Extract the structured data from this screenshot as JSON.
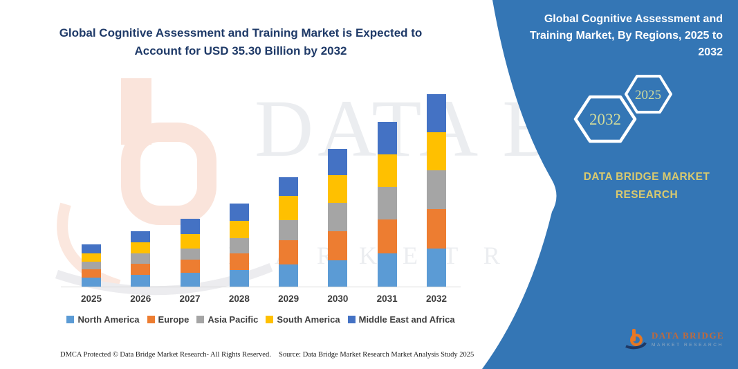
{
  "title": "Global Cognitive Assessment and Training Market is Expected to Account for USD 35.30 Billion by 2032",
  "side_panel": {
    "heading": "Global Cognitive Assessment and Training Market, By Regions, 2025 to 2032",
    "hexagon_back_year": "2032",
    "hexagon_front_year": "2025",
    "brand_line1": "DATA BRIDGE MARKET",
    "brand_line2": "RESEARCH",
    "background_color": "#3476B5",
    "accent_text_color": "#D9C96E",
    "hexagon_text_color": "#CFDA9C"
  },
  "watermarks": {
    "brand_large": "DATA BRIDGE",
    "brand_spaced": "M A R K E T   R E S E A R C H"
  },
  "logo": {
    "name": "DATA BRIDGE",
    "subtitle": "MARKET RESEARCH"
  },
  "footer": {
    "left": "DMCA Protected © Data Bridge Market Research-  All Rights Reserved.",
    "source": "Source: Data Bridge Market Research  Market Analysis Study 2025"
  },
  "chart_data": {
    "type": "bar",
    "stacked": true,
    "title": "Global Cognitive Assessment and Training Market, By Regions, 2025 to 2032",
    "unit": "USD Billion",
    "categories": [
      "2025",
      "2026",
      "2027",
      "2028",
      "2029",
      "2030",
      "2031",
      "2032"
    ],
    "series": [
      {
        "name": "North America",
        "color": "#5B9BD5",
        "values": [
          1.7,
          2.2,
          2.5,
          3.0,
          4.1,
          4.8,
          6.1,
          7.0
        ]
      },
      {
        "name": "Europe",
        "color": "#ED7D31",
        "values": [
          1.5,
          2.0,
          2.4,
          3.1,
          4.4,
          5.3,
          6.2,
          7.2
        ]
      },
      {
        "name": "Asia Pacific",
        "color": "#A5A5A5",
        "values": [
          1.4,
          1.9,
          2.1,
          2.8,
          3.7,
          5.2,
          6.0,
          7.1
        ]
      },
      {
        "name": "South America",
        "color": "#FFC000",
        "values": [
          1.5,
          2.0,
          2.7,
          3.2,
          4.4,
          5.1,
          5.9,
          7.0
        ]
      },
      {
        "name": "Middle East and Africa",
        "color": "#4472C4",
        "values": [
          1.6,
          2.0,
          2.7,
          3.1,
          3.5,
          4.8,
          6.0,
          7.0
        ]
      }
    ],
    "totals_estimated": [
      7.7,
      10.1,
      12.4,
      15.2,
      20.1,
      25.2,
      30.2,
      35.3
    ],
    "annotated_total_2032": "USD 35.30 Billion",
    "xlabel": "",
    "ylabel": "",
    "y_axis_visible": false,
    "grid": false,
    "legend_position": "bottom"
  }
}
